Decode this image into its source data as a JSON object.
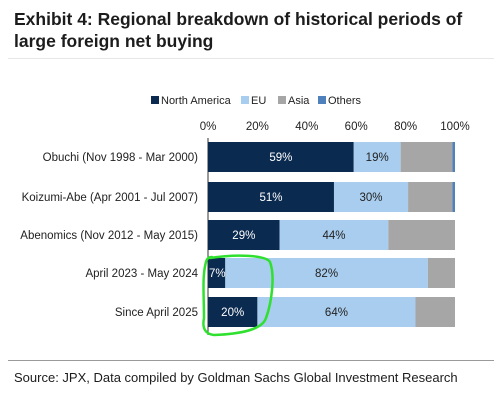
{
  "title": "Exhibit 4: Regional breakdown of historical periods of large foreign net buying",
  "source": "Source: JPX, Data compiled by Goldman Sachs Global Investment Research",
  "colors": {
    "North America": "#0b2a4f",
    "EU": "#a9cdee",
    "Asia": "#a6a6a6",
    "Others": "#4f81bd",
    "highlight": "#2fe02f"
  },
  "chart_data": {
    "type": "bar",
    "orientation": "horizontal",
    "stacked": true,
    "categories": [
      "Obuchi (Nov 1998 - Mar 2000)",
      "Koizumi-Abe (Apr 2001 - Jul 2007)",
      "Abenomics (Nov 2012 - May 2015)",
      "April 2023 - May 2024",
      "Since April 2025"
    ],
    "series": [
      {
        "name": "North America",
        "values": [
          59,
          51,
          29,
          7,
          20
        ],
        "labels": [
          "59%",
          "51%",
          "29%",
          "7%",
          "20%"
        ]
      },
      {
        "name": "EU",
        "values": [
          19,
          30,
          44,
          82,
          64
        ],
        "labels": [
          "19%",
          "30%",
          "44%",
          "82%",
          "64%"
        ]
      },
      {
        "name": "Asia",
        "values": [
          21,
          18,
          27,
          11,
          16
        ],
        "labels": [
          "",
          "",
          "",
          "",
          ""
        ]
      },
      {
        "name": "Others",
        "values": [
          1,
          1,
          0,
          0,
          0
        ],
        "labels": [
          "",
          "",
          "",
          "",
          ""
        ]
      }
    ],
    "xlim": [
      0,
      100
    ],
    "xticks": [
      "0%",
      "20%",
      "40%",
      "60%",
      "80%",
      "100%"
    ],
    "legend_position": "top",
    "grid": false,
    "highlighted_categories": [
      "April 2023 - May 2024",
      "Since April 2025"
    ]
  }
}
